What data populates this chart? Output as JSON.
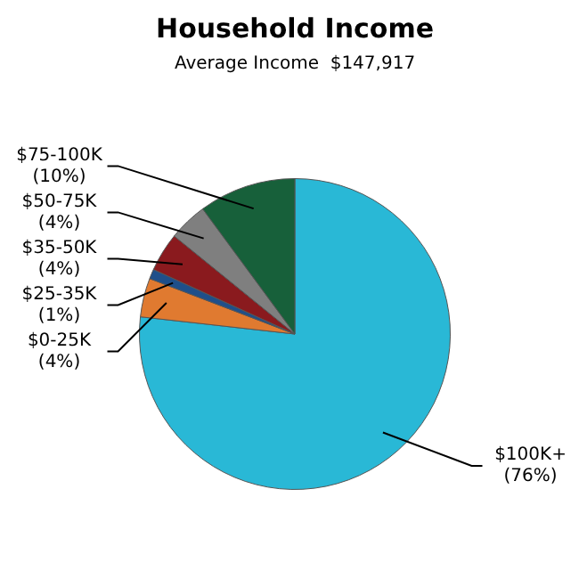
{
  "chart_data": {
    "type": "pie",
    "title": "Household Income",
    "subtitle": "Average Income  $147,917",
    "categories": [
      "$100K+",
      "$0-25K",
      "$25-35K",
      "$35-50K",
      "$50-75K",
      "$75-100K"
    ],
    "values": [
      76,
      4,
      1,
      4,
      4,
      10
    ],
    "value_labels": [
      "(76%)",
      "(4%)",
      "(1%)",
      "(4%)",
      "(4%)",
      "(10%)"
    ],
    "colors": [
      "#29b8d6",
      "#e07a30",
      "#1f4f8a",
      "#8a1a1e",
      "#7f7f7f",
      "#17603a"
    ],
    "legend": false
  }
}
